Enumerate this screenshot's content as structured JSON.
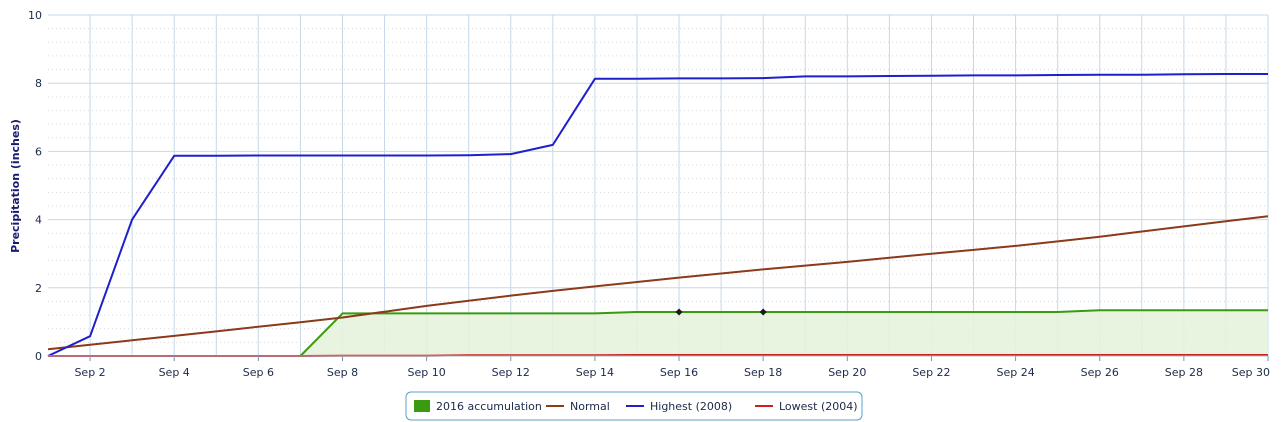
{
  "chart_data": {
    "type": "line",
    "title": "",
    "xlabel": "",
    "ylabel": "Precipitation (inches)",
    "ylim": [
      0,
      10
    ],
    "xlim": [
      1,
      30
    ],
    "y_ticks": [
      "0",
      "2",
      "4",
      "6",
      "8",
      "10"
    ],
    "x_ticks": [
      {
        "day": 2,
        "label": "Sep 2"
      },
      {
        "day": 4,
        "label": "Sep 4"
      },
      {
        "day": 6,
        "label": "Sep 6"
      },
      {
        "day": 8,
        "label": "Sep 8"
      },
      {
        "day": 10,
        "label": "Sep 10"
      },
      {
        "day": 12,
        "label": "Sep 12"
      },
      {
        "day": 14,
        "label": "Sep 14"
      },
      {
        "day": 16,
        "label": "Sep 16"
      },
      {
        "day": 18,
        "label": "Sep 18"
      },
      {
        "day": 20,
        "label": "Sep 20"
      },
      {
        "day": 22,
        "label": "Sep 22"
      },
      {
        "day": 24,
        "label": "Sep 24"
      },
      {
        "day": 26,
        "label": "Sep 26"
      },
      {
        "day": 28,
        "label": "Sep 28"
      },
      {
        "day": 30,
        "label": "Sep 30"
      }
    ],
    "grid": true,
    "legend_position": "bottom-center",
    "series": [
      {
        "name": "2016 accumulation",
        "type": "area",
        "color": "#3a9a10",
        "fill": "#e6f2dd",
        "marker_days": [
          16,
          18
        ],
        "x": [
          7,
          8,
          9,
          10,
          11,
          12,
          13,
          14,
          15,
          16,
          17,
          18,
          19,
          20,
          21,
          22,
          23,
          24,
          25,
          26,
          27,
          28,
          29,
          30
        ],
        "values": [
          0,
          1.25,
          1.25,
          1.25,
          1.25,
          1.25,
          1.25,
          1.25,
          1.29,
          1.29,
          1.29,
          1.29,
          1.29,
          1.29,
          1.29,
          1.29,
          1.29,
          1.29,
          1.29,
          1.34,
          1.34,
          1.34,
          1.34,
          1.34
        ]
      },
      {
        "name": "Normal",
        "type": "line",
        "color": "#8b3a1a",
        "x": [
          1,
          2,
          3,
          4,
          5,
          6,
          7,
          8,
          9,
          10,
          11,
          12,
          13,
          14,
          15,
          16,
          17,
          18,
          19,
          20,
          21,
          22,
          23,
          24,
          25,
          26,
          27,
          28,
          29,
          30
        ],
        "values": [
          0.2,
          0.33,
          0.46,
          0.59,
          0.72,
          0.86,
          0.99,
          1.13,
          1.3,
          1.47,
          1.62,
          1.77,
          1.91,
          2.04,
          2.17,
          2.3,
          2.42,
          2.54,
          2.65,
          2.76,
          2.88,
          3.0,
          3.11,
          3.23,
          3.36,
          3.5,
          3.65,
          3.8,
          3.95,
          4.1
        ]
      },
      {
        "name": "Highest (2008)",
        "type": "line",
        "color": "#1f1fcc",
        "x": [
          1,
          2,
          3,
          4,
          5,
          6,
          7,
          8,
          9,
          10,
          11,
          12,
          13,
          14,
          15,
          16,
          17,
          18,
          19,
          20,
          21,
          22,
          23,
          24,
          25,
          26,
          27,
          28,
          29,
          30
        ],
        "values": [
          0,
          0.58,
          4.0,
          5.87,
          5.87,
          5.88,
          5.88,
          5.88,
          5.88,
          5.88,
          5.89,
          5.92,
          6.19,
          8.13,
          8.13,
          8.14,
          8.14,
          8.15,
          8.2,
          8.2,
          8.21,
          8.22,
          8.23,
          8.23,
          8.24,
          8.25,
          8.25,
          8.26,
          8.27,
          8.27
        ]
      },
      {
        "name": "Lowest (2004)",
        "type": "line",
        "color": "#cc1f1f",
        "x": [
          1,
          2,
          3,
          4,
          5,
          6,
          7,
          8,
          9,
          10,
          11,
          12,
          13,
          14,
          15,
          16,
          17,
          18,
          19,
          20,
          21,
          22,
          23,
          24,
          25,
          26,
          27,
          28,
          29,
          30
        ],
        "values": [
          0,
          0,
          0,
          0,
          0,
          0,
          0,
          0.01,
          0.01,
          0.01,
          0.02,
          0.02,
          0.02,
          0.02,
          0.03,
          0.03,
          0.03,
          0.03,
          0.03,
          0.03,
          0.03,
          0.03,
          0.03,
          0.03,
          0.03,
          0.03,
          0.03,
          0.03,
          0.03,
          0.03
        ]
      }
    ]
  }
}
